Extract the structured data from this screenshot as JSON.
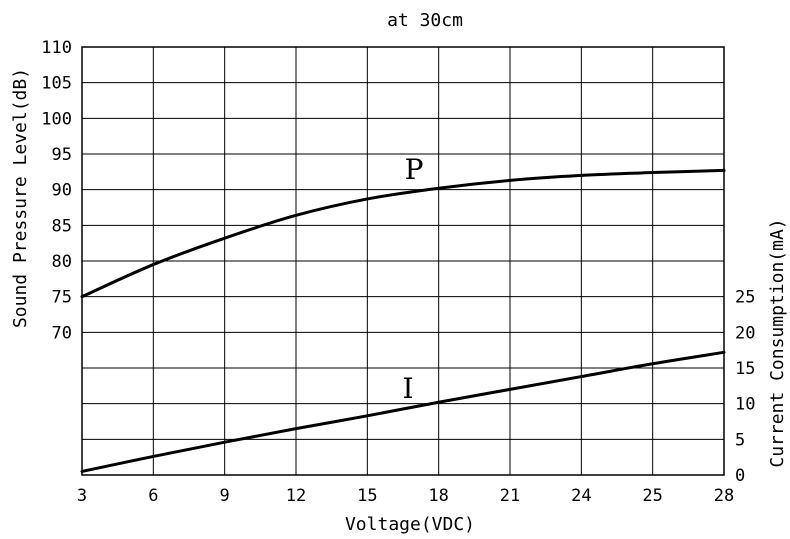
{
  "chart_data": {
    "type": "line",
    "title": "at 30cm",
    "xlabel": "Voltage(VDC)",
    "ylabel_left": "Sound Pressure Level(dB)",
    "ylabel_right": "Current Consumption(mA)",
    "x_tick_labels": [
      "3",
      "6",
      "9",
      "12",
      "15",
      "18",
      "21",
      "24",
      "25",
      "28"
    ],
    "y_left_tick_labels": [
      "110",
      "105",
      "100",
      "95",
      "90",
      "85",
      "80",
      "75",
      "70"
    ],
    "y_right_tick_labels": [
      "25",
      "20",
      "15",
      "10",
      "5",
      "0"
    ],
    "ylim_left": [
      70,
      110
    ],
    "ylim_right": [
      0,
      25
    ],
    "grid": true,
    "series": [
      {
        "name": "P",
        "axis": "left",
        "x_tick_index": [
          0,
          1,
          2,
          3,
          4,
          5,
          6,
          7,
          8,
          9
        ],
        "values": [
          75.0,
          79.5,
          83.2,
          86.4,
          88.7,
          90.2,
          91.3,
          92.0,
          92.4,
          92.7
        ]
      },
      {
        "name": "I",
        "axis": "right",
        "x_tick_index": [
          0,
          1,
          2,
          3,
          4,
          5,
          6,
          7,
          8,
          9
        ],
        "values": [
          0.5,
          2.6,
          4.6,
          6.5,
          8.3,
          10.2,
          12.0,
          13.8,
          15.6,
          17.2
        ]
      }
    ]
  }
}
